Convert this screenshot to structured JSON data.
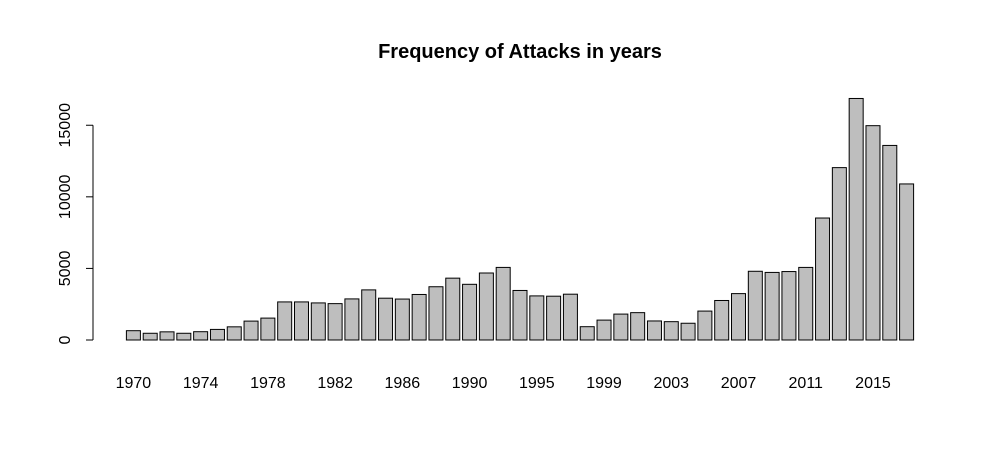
{
  "chart_data": {
    "type": "bar",
    "title": "Frequency of Attacks in years",
    "xlabel": "",
    "ylabel": "",
    "categories": [
      "1970",
      "1971",
      "1972",
      "1973",
      "1974",
      "1975",
      "1976",
      "1977",
      "1978",
      "1979",
      "1980",
      "1981",
      "1982",
      "1983",
      "1984",
      "1985",
      "1986",
      "1987",
      "1988",
      "1989",
      "1990",
      "1991",
      "1992",
      "1994",
      "1995",
      "1996",
      "1997",
      "1998",
      "1999",
      "2000",
      "2001",
      "2002",
      "2003",
      "2004",
      "2005",
      "2006",
      "2007",
      "2008",
      "2009",
      "2010",
      "2011",
      "2012",
      "2013",
      "2014",
      "2015",
      "2016",
      "2017"
    ],
    "values": [
      650,
      470,
      570,
      470,
      580,
      740,
      920,
      1320,
      1530,
      2660,
      2660,
      2590,
      2540,
      2870,
      3500,
      2920,
      2860,
      3180,
      3720,
      4320,
      3890,
      4680,
      5070,
      3460,
      3080,
      3060,
      3200,
      930,
      1390,
      1810,
      1910,
      1330,
      1280,
      1170,
      2020,
      2760,
      3240,
      4800,
      4720,
      4780,
      5070,
      8520,
      12040,
      16870,
      14970,
      13590,
      10900
    ],
    "tick_labels": [
      "1970",
      "1974",
      "1978",
      "1982",
      "1986",
      "1990",
      "1995",
      "1999",
      "2003",
      "2007",
      "2011",
      "2015"
    ],
    "y_ticks": [
      "0",
      "5000",
      "10000",
      "15000"
    ],
    "ylim": [
      0,
      16903
    ],
    "bar_color": "#bebebe",
    "grid": false
  }
}
